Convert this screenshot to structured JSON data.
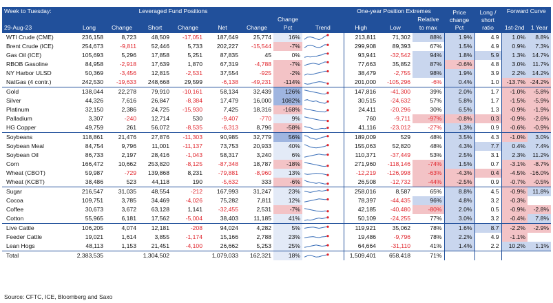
{
  "header": {
    "title_line1": "Week to Tuesday:",
    "title_line2": "29-Aug-23",
    "lev": "Leveraged Fund Positions",
    "extremes": "One-year Position Extremes",
    "pricechange": "Price change Pct",
    "ratio": "Long / short ratio",
    "fc": "Forward Curve",
    "cols": [
      "Long",
      "Change",
      "Short",
      "Change",
      "Net",
      "Change",
      "Change Pct",
      "Trend",
      "High",
      "Low",
      "Relative to max",
      "1st-2nd",
      "1 Year"
    ]
  },
  "colors": {
    "neg_text": "#e0242b",
    "pos_bg": "#c9d6ee",
    "neg_bg": "#f3c3c6",
    "header": "#21509b",
    "spark": "#3a6fb8",
    "spark_end": "#e0242b"
  },
  "rows": [
    {
      "name": "WTI Crude (CME)",
      "long": "236,158",
      "chL": "8,723",
      "short": "48,509",
      "chS": "-17,051",
      "net": "187,649",
      "chN": "25,774",
      "pct": "16%",
      "spark": [
        0.2,
        0.55,
        0.6,
        0.5,
        0.3,
        0.15,
        0.35,
        0.7,
        0.9
      ],
      "high": "213,811",
      "low": "71,302",
      "rel": "88%",
      "price": "1.9%",
      "ratio": "4.9",
      "fc1": "1.0%",
      "fc2": "8.8%",
      "g": 0
    },
    {
      "name": "Brent Crude (ICE)",
      "long": "254,673",
      "chL": "-9,811",
      "short": "52,446",
      "chS": "5,733",
      "net": "202,227",
      "chN": "-15,544",
      "pct": "-7%",
      "spark": [
        0.3,
        0.6,
        0.7,
        0.6,
        0.4,
        0.3,
        0.5,
        0.8,
        0.75
      ],
      "high": "299,908",
      "low": "89,393",
      "rel": "67%",
      "price": "1.5%",
      "ratio": "4.9",
      "fc1": "0.9%",
      "fc2": "7.3%",
      "g": 0
    },
    {
      "name": "Gas Oil (ICE)",
      "long": "105,693",
      "chL": "5,296",
      "short": "17,858",
      "chS": "5,251",
      "net": "87,835",
      "chN": "45",
      "pct": "0%",
      "spark": [
        0.2,
        0.3,
        0.25,
        0.3,
        0.35,
        0.5,
        0.6,
        0.8,
        0.8
      ],
      "high": "93,941",
      "low": "-32,542",
      "rel": "94%",
      "price": "1.8%",
      "ratio": "5.9",
      "fc1": "1.3%",
      "fc2": "14.7%",
      "g": 0
    },
    {
      "name": "RBOB Gasoline",
      "long": "84,958",
      "chL": "-2,918",
      "short": "17,639",
      "chS": "1,870",
      "net": "67,319",
      "chN": "-4,788",
      "pct": "-7%",
      "spark": [
        0.3,
        0.5,
        0.6,
        0.7,
        0.6,
        0.5,
        0.7,
        0.9,
        0.85
      ],
      "high": "77,663",
      "low": "35,852",
      "rel": "87%",
      "price": "-0.6%",
      "ratio": "4.8",
      "fc1": "3.0%",
      "fc2": "11.7%",
      "g": 0
    },
    {
      "name": "NY Harbor ULSD",
      "long": "50,369",
      "chL": "-3,456",
      "short": "12,815",
      "chS": "-2,531",
      "net": "37,554",
      "chN": "-925",
      "pct": "-2%",
      "spark": [
        0.2,
        0.4,
        0.3,
        0.35,
        0.5,
        0.6,
        0.7,
        0.85,
        0.83
      ],
      "high": "38,479",
      "low": "-2,755",
      "rel": "98%",
      "price": "1.9%",
      "ratio": "3.9",
      "fc1": "2.2%",
      "fc2": "14.2%",
      "g": 0
    },
    {
      "name": "NatGas (4 contr.)",
      "long": "242,530",
      "chL": "-19,633",
      "short": "248,668",
      "chS": "29,599",
      "net": "-6,138",
      "chN": "-49,231",
      "pct": "-114%",
      "spark": [
        0.3,
        0.2,
        0.25,
        0.4,
        0.5,
        0.6,
        0.55,
        0.45,
        0.3
      ],
      "high": "201,000",
      "low": "-105,296",
      "rel": "-6%",
      "price": "0.4%",
      "ratio": "1.0",
      "fc1": "-13.7%",
      "fc2": "-24.2%",
      "g": 1
    },
    {
      "name": "Gold",
      "long": "138,044",
      "chL": "22,278",
      "short": "79,910",
      "chS": "-10,161",
      "net": "58,134",
      "chN": "32,439",
      "pct": "126%",
      "spark": [
        0.8,
        0.7,
        0.6,
        0.5,
        0.4,
        0.3,
        0.2,
        0.15,
        0.35
      ],
      "high": "147,816",
      "low": "-41,300",
      "rel": "39%",
      "price": "2.0%",
      "ratio": "1.7",
      "fc1": "-1.0%",
      "fc2": "-5.8%",
      "g": 0
    },
    {
      "name": "Silver",
      "long": "44,326",
      "chL": "7,616",
      "short": "26,847",
      "chS": "-8,384",
      "net": "17,479",
      "chN": "16,000",
      "pct": "1082%",
      "spark": [
        0.6,
        0.7,
        0.5,
        0.4,
        0.5,
        0.3,
        0.2,
        0.1,
        0.4
      ],
      "high": "30,515",
      "low": "-24,632",
      "rel": "57%",
      "price": "5.8%",
      "ratio": "1.7",
      "fc1": "-1.5%",
      "fc2": "-5.9%",
      "g": 0
    },
    {
      "name": "Platinum",
      "long": "32,150",
      "chL": "2,386",
      "short": "24,725",
      "chS": "-15,930",
      "net": "7,425",
      "chN": "18,316",
      "pct": "-168%",
      "spark": [
        0.7,
        0.6,
        0.5,
        0.4,
        0.3,
        0.25,
        0.2,
        0.15,
        0.45
      ],
      "high": "24,411",
      "low": "-20,296",
      "rel": "30%",
      "price": "6.5%",
      "ratio": "1.3",
      "fc1": "-0.9%",
      "fc2": "-1.9%",
      "g": 0
    },
    {
      "name": "Palladium",
      "long": "3,307",
      "chL": "-240",
      "short": "12,714",
      "chS": "530",
      "net": "-9,407",
      "chN": "-770",
      "pct": "9%",
      "spark": [
        0.8,
        0.7,
        0.6,
        0.5,
        0.4,
        0.3,
        0.25,
        0.2,
        0.15
      ],
      "high": "760",
      "low": "-9,711",
      "rel": "-97%",
      "price": "-0.8%",
      "ratio": "0.3",
      "fc1": "-0.9%",
      "fc2": "-2.6%",
      "g": 0
    },
    {
      "name": "HG Copper",
      "long": "49,759",
      "chL": "261",
      "short": "56,072",
      "chS": "-8,535",
      "net": "-6,313",
      "chN": "8,796",
      "pct": "-58%",
      "spark": [
        0.7,
        0.6,
        0.5,
        0.3,
        0.2,
        0.3,
        0.4,
        0.35,
        0.5
      ],
      "high": "41,116",
      "low": "-23,012",
      "rel": "-27%",
      "price": "1.3%",
      "ratio": "0.9",
      "fc1": "-0.6%",
      "fc2": "-0.9%",
      "g": 1
    },
    {
      "name": "Soybeans",
      "long": "118,861",
      "chL": "21,476",
      "short": "27,876",
      "chS": "-11,303",
      "net": "90,985",
      "chN": "32,779",
      "pct": "56%",
      "spark": [
        0.8,
        0.7,
        0.4,
        0.3,
        0.2,
        0.3,
        0.5,
        0.6,
        0.7
      ],
      "high": "189,009",
      "low": "529",
      "rel": "48%",
      "price": "3.5%",
      "ratio": "4.3",
      "fc1": "-1.0%",
      "fc2": "3.0%",
      "g": 0
    },
    {
      "name": "Soybean Meal",
      "long": "84,754",
      "chL": "9,796",
      "short": "11,001",
      "chS": "-11,137",
      "net": "73,753",
      "chN": "20,933",
      "pct": "40%",
      "spark": [
        0.8,
        0.6,
        0.4,
        0.3,
        0.25,
        0.3,
        0.4,
        0.5,
        0.7
      ],
      "high": "155,063",
      "low": "52,820",
      "rel": "48%",
      "price": "4.3%",
      "ratio": "7.7",
      "fc1": "0.4%",
      "fc2": "7.4%",
      "g": 0
    },
    {
      "name": "Soybean Oil",
      "long": "86,733",
      "chL": "2,197",
      "short": "28,416",
      "chS": "-1,043",
      "net": "58,317",
      "chN": "3,240",
      "pct": "6%",
      "spark": [
        0.2,
        0.3,
        0.4,
        0.5,
        0.6,
        0.7,
        0.6,
        0.55,
        0.6
      ],
      "high": "110,371",
      "low": "-37,449",
      "rel": "53%",
      "price": "2.5%",
      "ratio": "3.1",
      "fc1": "2.3%",
      "fc2": "11.2%",
      "g": 0
    },
    {
      "name": "Corn",
      "long": "166,472",
      "chL": "10,662",
      "short": "253,820",
      "chS": "-8,125",
      "net": "-87,348",
      "chN": "18,787",
      "pct": "-18%",
      "spark": [
        0.8,
        0.7,
        0.6,
        0.5,
        0.4,
        0.3,
        0.2,
        0.15,
        0.25
      ],
      "high": "271,960",
      "low": "-118,146",
      "rel": "-74%",
      "price": "1.5%",
      "ratio": "0.7",
      "fc1": "-3.1%",
      "fc2": "-8.7%",
      "g": 0
    },
    {
      "name": "Wheat (CBOT)",
      "long": "59,987",
      "chL": "-729",
      "short": "139,868",
      "chS": "8,231",
      "net": "-79,881",
      "chN": "-8,960",
      "pct": "13%",
      "spark": [
        0.4,
        0.3,
        0.35,
        0.4,
        0.5,
        0.45,
        0.4,
        0.3,
        0.2
      ],
      "high": "-12,219",
      "low": "-126,998",
      "rel": "-63%",
      "price": "-4.3%",
      "ratio": "0.4",
      "fc1": "-4.5%",
      "fc2": "-16.0%",
      "g": 0
    },
    {
      "name": "Wheat (KCBT)",
      "long": "38,486",
      "chL": "523",
      "short": "44,118",
      "chS": "190",
      "net": "-5,632",
      "chN": "333",
      "pct": "-6%",
      "spark": [
        0.8,
        0.6,
        0.5,
        0.4,
        0.3,
        0.4,
        0.3,
        0.2,
        0.25
      ],
      "high": "26,508",
      "low": "-12,732",
      "rel": "-44%",
      "price": "-2.5%",
      "ratio": "0.9",
      "fc1": "-0.7%",
      "fc2": "-0.5%",
      "g": 1
    },
    {
      "name": "Sugar",
      "long": "216,547",
      "chL": "31,035",
      "short": "48,554",
      "chS": "-212",
      "net": "167,993",
      "chN": "31,247",
      "pct": "23%",
      "spark": [
        0.6,
        0.5,
        0.4,
        0.5,
        0.6,
        0.7,
        0.6,
        0.7,
        0.8
      ],
      "high": "258,016",
      "low": "8,587",
      "rel": "65%",
      "price": "8.8%",
      "ratio": "4.5",
      "fc1": "-0.9%",
      "fc2": "11.8%",
      "g": 0
    },
    {
      "name": "Cocoa",
      "long": "109,751",
      "chL": "3,785",
      "short": "34,469",
      "chS": "-4,026",
      "net": "75,282",
      "chN": "7,811",
      "pct": "12%",
      "spark": [
        0.3,
        0.4,
        0.5,
        0.6,
        0.7,
        0.8,
        0.75,
        0.7,
        0.72
      ],
      "high": "78,397",
      "low": "-44,435",
      "rel": "96%",
      "price": "4.8%",
      "ratio": "3.2",
      "fc1": "-0.3%",
      "fc2": "",
      "g": 0
    },
    {
      "name": "Coffee",
      "long": "30,673",
      "chL": "3,672",
      "short": "63,128",
      "chS": "1,141",
      "net": "-32,455",
      "chN": "2,531",
      "pct": "-7%",
      "spark": [
        0.7,
        0.6,
        0.5,
        0.4,
        0.3,
        0.25,
        0.2,
        0.3,
        0.25
      ],
      "high": "42,185",
      "low": "-40,480",
      "rel": "-80%",
      "price": "2.0%",
      "ratio": "0.5",
      "fc1": "-0.9%",
      "fc2": "-2.8%",
      "g": 0
    },
    {
      "name": "Cotton",
      "long": "55,965",
      "chL": "6,181",
      "short": "17,562",
      "chS": "-5,004",
      "net": "38,403",
      "chN": "11,185",
      "pct": "41%",
      "spark": [
        0.2,
        0.3,
        0.25,
        0.35,
        0.5,
        0.6,
        0.5,
        0.6,
        0.7
      ],
      "high": "50,109",
      "low": "-24,255",
      "rel": "77%",
      "price": "3.0%",
      "ratio": "3.2",
      "fc1": "-0.4%",
      "fc2": "7.8%",
      "g": 1
    },
    {
      "name": "Live Cattle",
      "long": "106,205",
      "chL": "4,074",
      "short": "12,181",
      "chS": "-208",
      "net": "94,024",
      "chN": "4,282",
      "pct": "5%",
      "spark": [
        0.5,
        0.6,
        0.65,
        0.7,
        0.6,
        0.5,
        0.6,
        0.7,
        0.75
      ],
      "high": "119,921",
      "low": "35,062",
      "rel": "78%",
      "price": "1.6%",
      "ratio": "8.7",
      "fc1": "-2.2%",
      "fc2": "-2.9%",
      "g": 0
    },
    {
      "name": "Feeder Cattle",
      "long": "19,021",
      "chL": "1,614",
      "short": "3,855",
      "chS": "-1,174",
      "net": "15,166",
      "chN": "2,788",
      "pct": "23%",
      "spark": [
        0.4,
        0.5,
        0.55,
        0.6,
        0.5,
        0.45,
        0.55,
        0.6,
        0.7
      ],
      "high": "19,486",
      "low": "-9,796",
      "rel": "78%",
      "price": "2.2%",
      "ratio": "4.9",
      "fc1": "-1.1%",
      "fc2": "",
      "g": 0
    },
    {
      "name": "Lean Hogs",
      "long": "48,113",
      "chL": "1,153",
      "short": "21,451",
      "chS": "-4,100",
      "net": "26,662",
      "chN": "5,253",
      "pct": "25%",
      "spark": [
        0.3,
        0.4,
        0.5,
        0.6,
        0.7,
        0.6,
        0.5,
        0.55,
        0.65
      ],
      "high": "64,664",
      "low": "-31,110",
      "rel": "41%",
      "price": "1.4%",
      "ratio": "2.2",
      "fc1": "10.2%",
      "fc2": "1.1%",
      "g": 1
    }
  ],
  "total": {
    "name": "Total",
    "long": "2,383,535",
    "short": "1,304,502",
    "net": "1,079,033",
    "chN": "162,321",
    "pct": "18%",
    "spark": [
      0.3,
      0.5,
      0.6,
      0.45,
      0.3,
      0.35,
      0.5,
      0.6,
      0.7
    ],
    "high": "1,509,401",
    "low": "658,418",
    "rel": "71%"
  },
  "source": "Source: CFTC, ICE, Bloomberg and Saxo"
}
